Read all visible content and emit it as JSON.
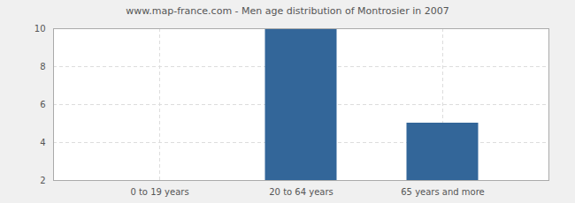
{
  "chart_data": {
    "type": "bar",
    "title": "www.map-france.com - Men age distribution of Montrosier in 2007",
    "categories": [
      "0 to 19 years",
      "20 to 64 years",
      "65 years and more"
    ],
    "values": [
      2,
      10,
      5
    ],
    "color": "#336699",
    "ylim": [
      2,
      10
    ],
    "yticks": [
      2,
      4,
      6,
      8,
      10
    ],
    "grid": true
  }
}
